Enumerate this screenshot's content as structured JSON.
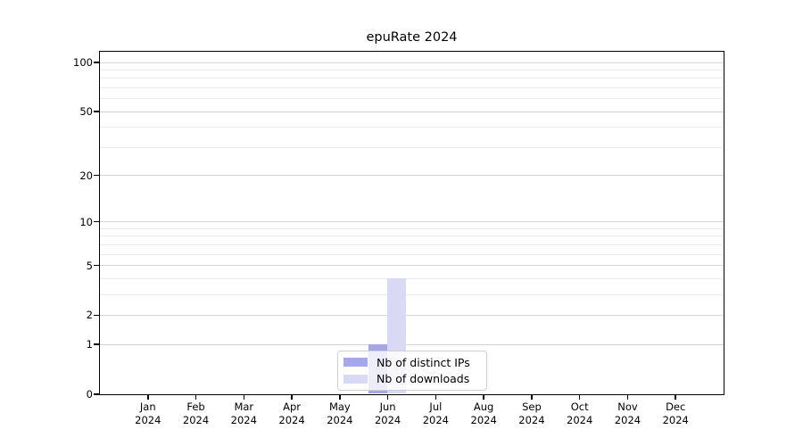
{
  "chart_data": {
    "type": "bar",
    "title": "epuRate 2024",
    "x_tick_months": [
      "Jan",
      "Feb",
      "Mar",
      "Apr",
      "May",
      "Jun",
      "Jul",
      "Aug",
      "Sep",
      "Oct",
      "Nov",
      "Dec"
    ],
    "x_tick_year": "2024",
    "categories": [
      "Jan 2024",
      "Feb 2024",
      "Mar 2024",
      "Apr 2024",
      "May 2024",
      "Jun 2024",
      "Jul 2024",
      "Aug 2024",
      "Sep 2024",
      "Oct 2024",
      "Nov 2024",
      "Dec 2024"
    ],
    "series": [
      {
        "name": "Nb of distinct IPs",
        "color": "#a6a6ec",
        "values": [
          0,
          0,
          0,
          0,
          0,
          1,
          0,
          0,
          0,
          0,
          0,
          0
        ]
      },
      {
        "name": "Nb of downloads",
        "color": "#d9d9f6",
        "values": [
          0,
          0,
          0,
          0,
          0,
          4,
          0,
          0,
          0,
          0,
          0,
          0
        ]
      }
    ],
    "yscale": "log1p",
    "ylim": [
      0,
      100
    ],
    "yticks": [
      0,
      1,
      2,
      5,
      10,
      20,
      50,
      100
    ],
    "ytick_labels": [
      "0",
      "1",
      "2",
      "5",
      "10",
      "20",
      "50",
      "100"
    ],
    "yticks_minor": [
      3,
      4,
      6,
      7,
      8,
      9,
      30,
      40,
      60,
      70,
      80,
      90
    ],
    "grid": "horizontal-only",
    "legend": {
      "position": "inside-bottom-center",
      "entries": [
        "Nb of distinct IPs",
        "Nb of downloads"
      ]
    },
    "colors": {
      "grid_major": "#d4d4d4",
      "grid_minor": "#ebebeb",
      "spine": "#000000",
      "text": "#000000",
      "legend_border": "#cfcfcf"
    }
  }
}
